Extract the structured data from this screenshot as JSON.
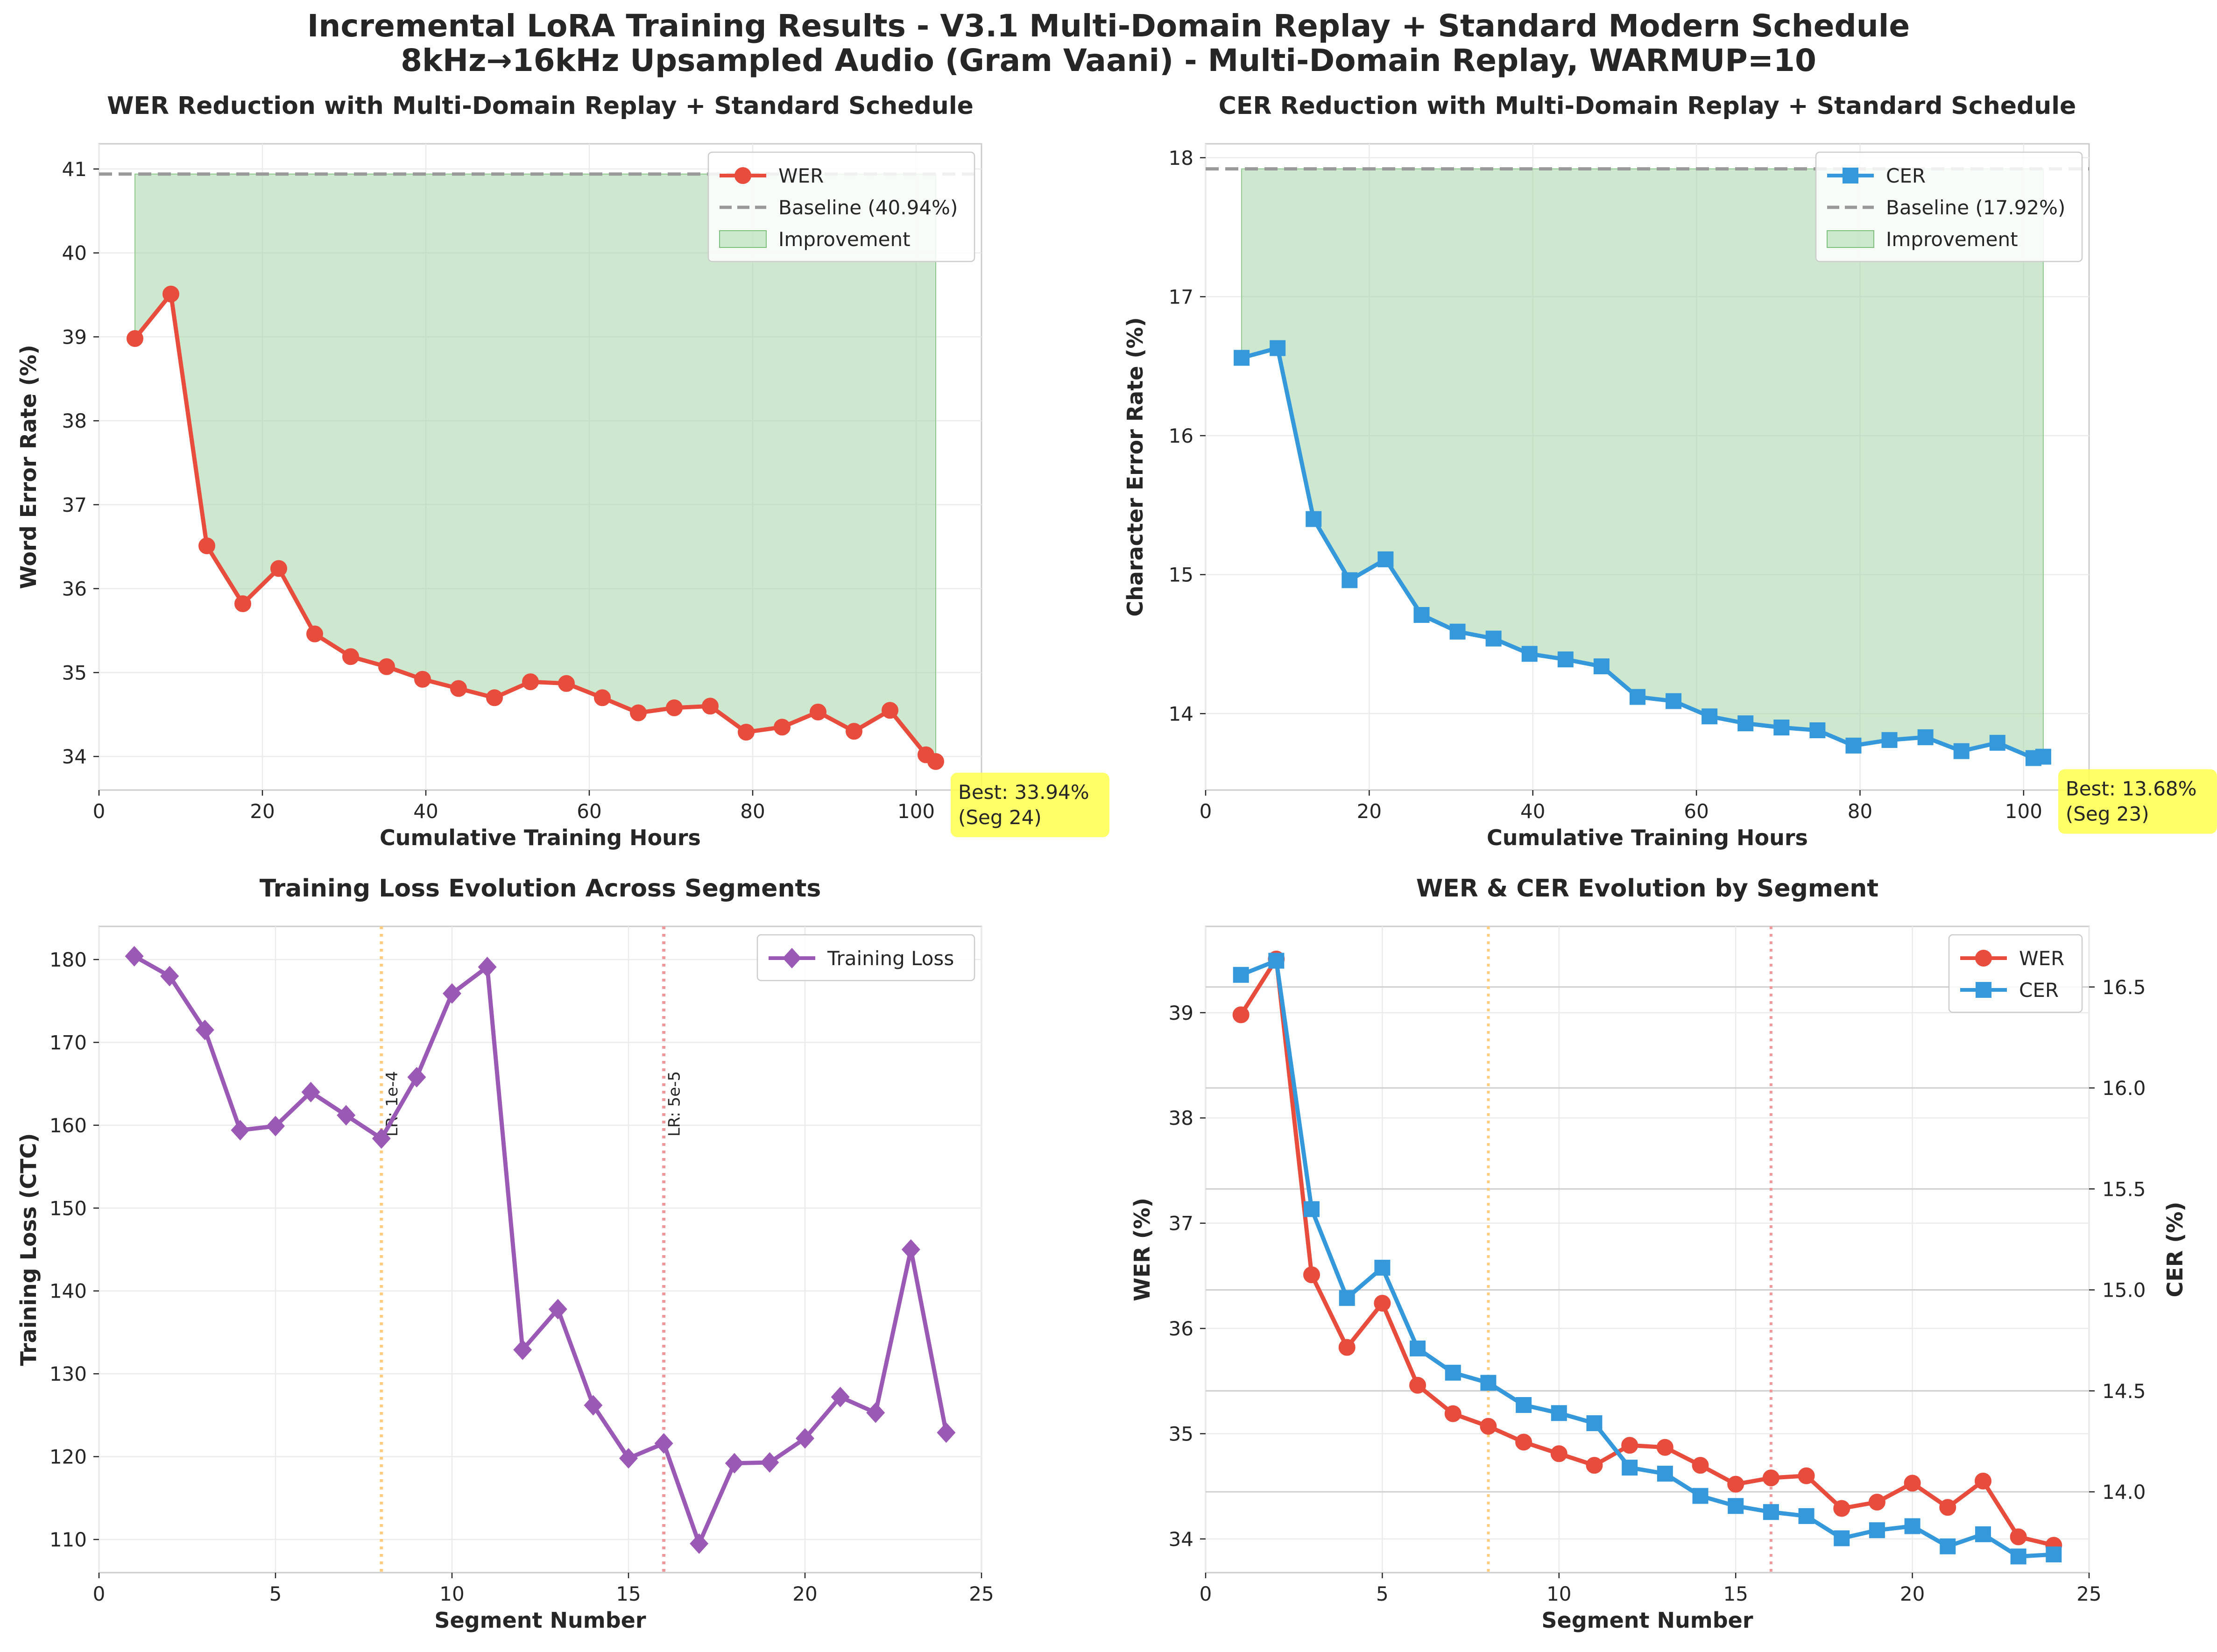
{
  "suptitle": {
    "line1": "Incremental LoRA Training Results - V3.1 Multi-Domain Replay + Standard Modern Schedule",
    "line2": "8kHz→16kHz Upsampled Audio (Gram Vaani) - Multi-Domain Replay, WARMUP=10"
  },
  "colors": {
    "wer": "#e74c3c",
    "cer": "#3498db",
    "loss": "#9b59b6",
    "fill": "#a5d6a7",
    "baseline": "#999999",
    "best_box": "#ffff4d",
    "lr1": "#ffcc80",
    "lr2": "#ef9a9a"
  },
  "chart_data": [
    {
      "id": "wer",
      "type": "line",
      "title": "WER Reduction with Multi-Domain Replay + Standard Schedule",
      "xlabel": "Cumulative Training Hours",
      "ylabel": "Word Error Rate (%)",
      "xlim": [
        0,
        108
      ],
      "ylim": [
        33.6,
        41.3
      ],
      "xticks": [
        0,
        20,
        40,
        60,
        80,
        100
      ],
      "yticks": [
        34,
        35,
        36,
        37,
        38,
        39,
        40,
        41
      ],
      "x": [
        4.4,
        8.8,
        13.2,
        17.6,
        22.0,
        26.4,
        30.8,
        35.2,
        39.6,
        44.0,
        48.4,
        52.8,
        57.2,
        61.6,
        66.0,
        70.4,
        74.8,
        79.2,
        83.6,
        88.0,
        92.4,
        96.8,
        101.2,
        102.4
      ],
      "y": [
        38.98,
        39.51,
        36.51,
        35.82,
        36.24,
        35.46,
        35.19,
        35.07,
        34.92,
        34.81,
        34.7,
        34.89,
        34.87,
        34.7,
        34.52,
        34.58,
        34.6,
        34.29,
        34.35,
        34.53,
        34.3,
        34.55,
        34.02,
        33.94
      ],
      "series_name": "WER",
      "baseline": 40.94,
      "baseline_label": "Baseline (40.94%)",
      "fill_label": "Improvement",
      "best_label": "Best: 33.94%",
      "best_seg": "(Seg 24)",
      "marker": "circle"
    },
    {
      "id": "cer",
      "type": "line",
      "title": "CER Reduction with Multi-Domain Replay + Standard Schedule",
      "xlabel": "Cumulative Training Hours",
      "ylabel": "Character Error Rate (%)",
      "xlim": [
        0,
        108
      ],
      "ylim": [
        13.45,
        18.1
      ],
      "xticks": [
        0,
        20,
        40,
        60,
        80,
        100
      ],
      "yticks": [
        14,
        15,
        16,
        17,
        18
      ],
      "x": [
        4.4,
        8.8,
        13.2,
        17.6,
        22.0,
        26.4,
        30.8,
        35.2,
        39.6,
        44.0,
        48.4,
        52.8,
        57.2,
        61.6,
        66.0,
        70.4,
        74.8,
        79.2,
        83.6,
        88.0,
        92.4,
        96.8,
        101.2,
        102.4
      ],
      "y": [
        16.56,
        16.63,
        15.4,
        14.96,
        15.11,
        14.71,
        14.59,
        14.54,
        14.43,
        14.39,
        14.34,
        14.12,
        14.09,
        13.98,
        13.93,
        13.9,
        13.88,
        13.77,
        13.81,
        13.83,
        13.73,
        13.79,
        13.68,
        13.69
      ],
      "series_name": "CER",
      "baseline": 17.92,
      "baseline_label": "Baseline (17.92%)",
      "fill_label": "Improvement",
      "best_label": "Best: 13.68%",
      "best_seg": "(Seg 23)",
      "marker": "square"
    },
    {
      "id": "loss",
      "type": "line",
      "title": "Training Loss Evolution Across Segments",
      "xlabel": "Segment Number",
      "ylabel": "Training Loss (CTC)",
      "xlim": [
        0,
        25
      ],
      "ylim": [
        106,
        184
      ],
      "xticks": [
        0,
        5,
        10,
        15,
        20,
        25
      ],
      "yticks": [
        110,
        120,
        130,
        140,
        150,
        160,
        170,
        180
      ],
      "x": [
        1,
        2,
        3,
        4,
        5,
        6,
        7,
        8,
        9,
        10,
        11,
        12,
        13,
        14,
        15,
        16,
        17,
        18,
        19,
        20,
        21,
        22,
        23,
        24
      ],
      "y": [
        180.4,
        178.0,
        171.5,
        159.4,
        159.9,
        164.0,
        161.2,
        158.4,
        165.8,
        175.9,
        179.1,
        132.9,
        137.8,
        126.2,
        119.8,
        121.6,
        109.5,
        119.2,
        119.3,
        122.2,
        127.2,
        125.3,
        145.0,
        122.9
      ],
      "series_name": "Training Loss",
      "lr_lines": [
        {
          "x": 8,
          "label": "LR: 1e-4"
        },
        {
          "x": 16,
          "label": "LR: 5e-5"
        }
      ],
      "marker": "diamond"
    },
    {
      "id": "evo",
      "type": "line",
      "title": "WER & CER Evolution by Segment",
      "xlabel": "Segment Number",
      "ylabel": "WER (%)",
      "ylabel_right": "CER (%)",
      "xlim": [
        0,
        25
      ],
      "ylim": [
        33.68,
        39.82
      ],
      "ylim_right": [
        13.6,
        16.8
      ],
      "xticks": [
        0,
        5,
        10,
        15,
        20,
        25
      ],
      "yticks": [
        34,
        35,
        36,
        37,
        38,
        39
      ],
      "yticks_right": [
        14.0,
        14.5,
        15.0,
        15.5,
        16.0,
        16.5
      ],
      "ytick_labels_right": [
        "14.0",
        "14.5",
        "15.0",
        "15.5",
        "16.0",
        "16.5"
      ],
      "x": [
        1,
        2,
        3,
        4,
        5,
        6,
        7,
        8,
        9,
        10,
        11,
        12,
        13,
        14,
        15,
        16,
        17,
        18,
        19,
        20,
        21,
        22,
        23,
        24
      ],
      "series": [
        {
          "name": "WER",
          "axis": "left",
          "values": [
            38.98,
            39.51,
            36.51,
            35.82,
            36.24,
            35.46,
            35.19,
            35.07,
            34.92,
            34.81,
            34.7,
            34.89,
            34.87,
            34.7,
            34.52,
            34.58,
            34.6,
            34.29,
            34.35,
            34.53,
            34.3,
            34.55,
            34.02,
            33.94
          ]
        },
        {
          "name": "CER",
          "axis": "right",
          "values": [
            16.56,
            16.63,
            15.4,
            14.96,
            15.11,
            14.71,
            14.59,
            14.54,
            14.43,
            14.39,
            14.34,
            14.12,
            14.09,
            13.98,
            13.93,
            13.9,
            13.88,
            13.77,
            13.81,
            13.83,
            13.73,
            13.79,
            13.68,
            13.69
          ]
        }
      ],
      "lr_lines_x": [
        8,
        16
      ]
    }
  ]
}
